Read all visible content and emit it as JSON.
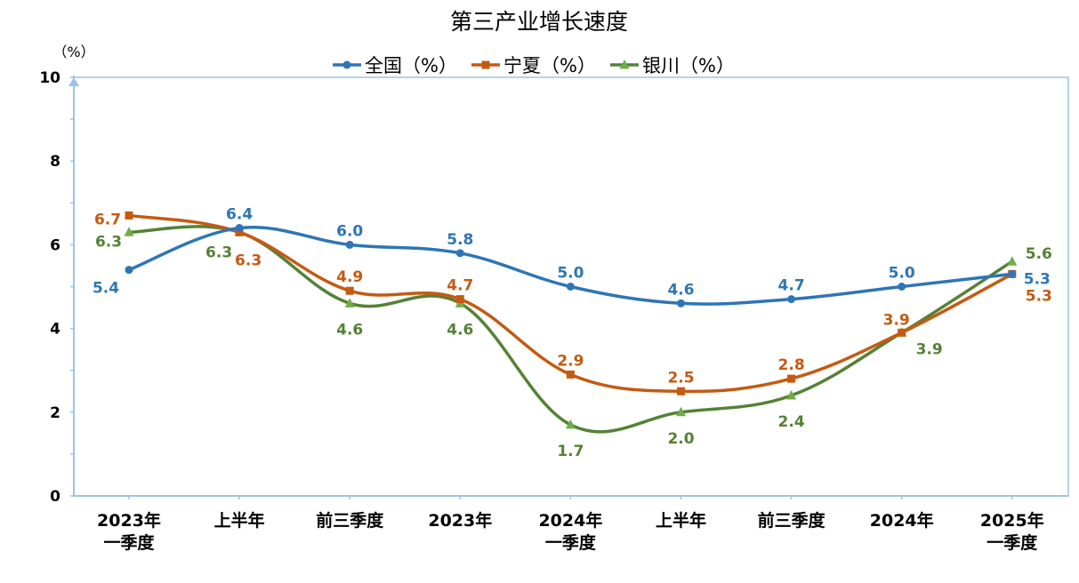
{
  "chart_data": {
    "type": "line",
    "title": "第三产业增长速度",
    "ylabel": "（%）",
    "ylim": [
      0,
      10
    ],
    "yticks": [
      0,
      2,
      4,
      6,
      8,
      10
    ],
    "legend_position": "top-center",
    "grid": false,
    "smooth": true,
    "categories": [
      [
        "2023年",
        "一季度"
      ],
      [
        "上半年"
      ],
      [
        "前三季度"
      ],
      [
        "2023年"
      ],
      [
        "2024年",
        "一季度"
      ],
      [
        "上半年"
      ],
      [
        "前三季度"
      ],
      [
        "2024年"
      ],
      [
        "2025年",
        "一季度"
      ]
    ],
    "series": [
      {
        "name": "全国（%）",
        "color": "#2E75B6",
        "marker": "circle",
        "values": [
          5.4,
          6.4,
          6.0,
          5.8,
          5.0,
          4.6,
          4.7,
          5.0,
          5.3
        ]
      },
      {
        "name": "宁夏（%）",
        "color": "#C55A11",
        "marker": "square",
        "values": [
          6.7,
          6.3,
          4.9,
          4.7,
          2.9,
          2.5,
          2.8,
          3.9,
          5.3
        ]
      },
      {
        "name": "银川（%）",
        "color": "#548235",
        "marker": "triangle",
        "marker_color": "#70AD47",
        "values": [
          6.3,
          6.3,
          4.6,
          4.6,
          1.7,
          2.0,
          2.4,
          3.9,
          5.6
        ]
      }
    ],
    "data_labels": [
      [
        "5.4",
        "6.4",
        "6.0",
        "5.8",
        "5.0",
        "4.6",
        "4.7",
        "5.0",
        "5.3"
      ],
      [
        "6.7",
        "6.3",
        "4.9",
        "4.7",
        "2.9",
        "2.5",
        "2.8",
        "3.9",
        "5.3"
      ],
      [
        "6.3",
        "6.3",
        "4.6",
        "4.6",
        "1.7",
        "2.0",
        "2.4",
        "3.9",
        "5.6"
      ]
    ]
  },
  "colors": {
    "axis": "#9DC3E6",
    "frame": "#9DC3E6"
  }
}
